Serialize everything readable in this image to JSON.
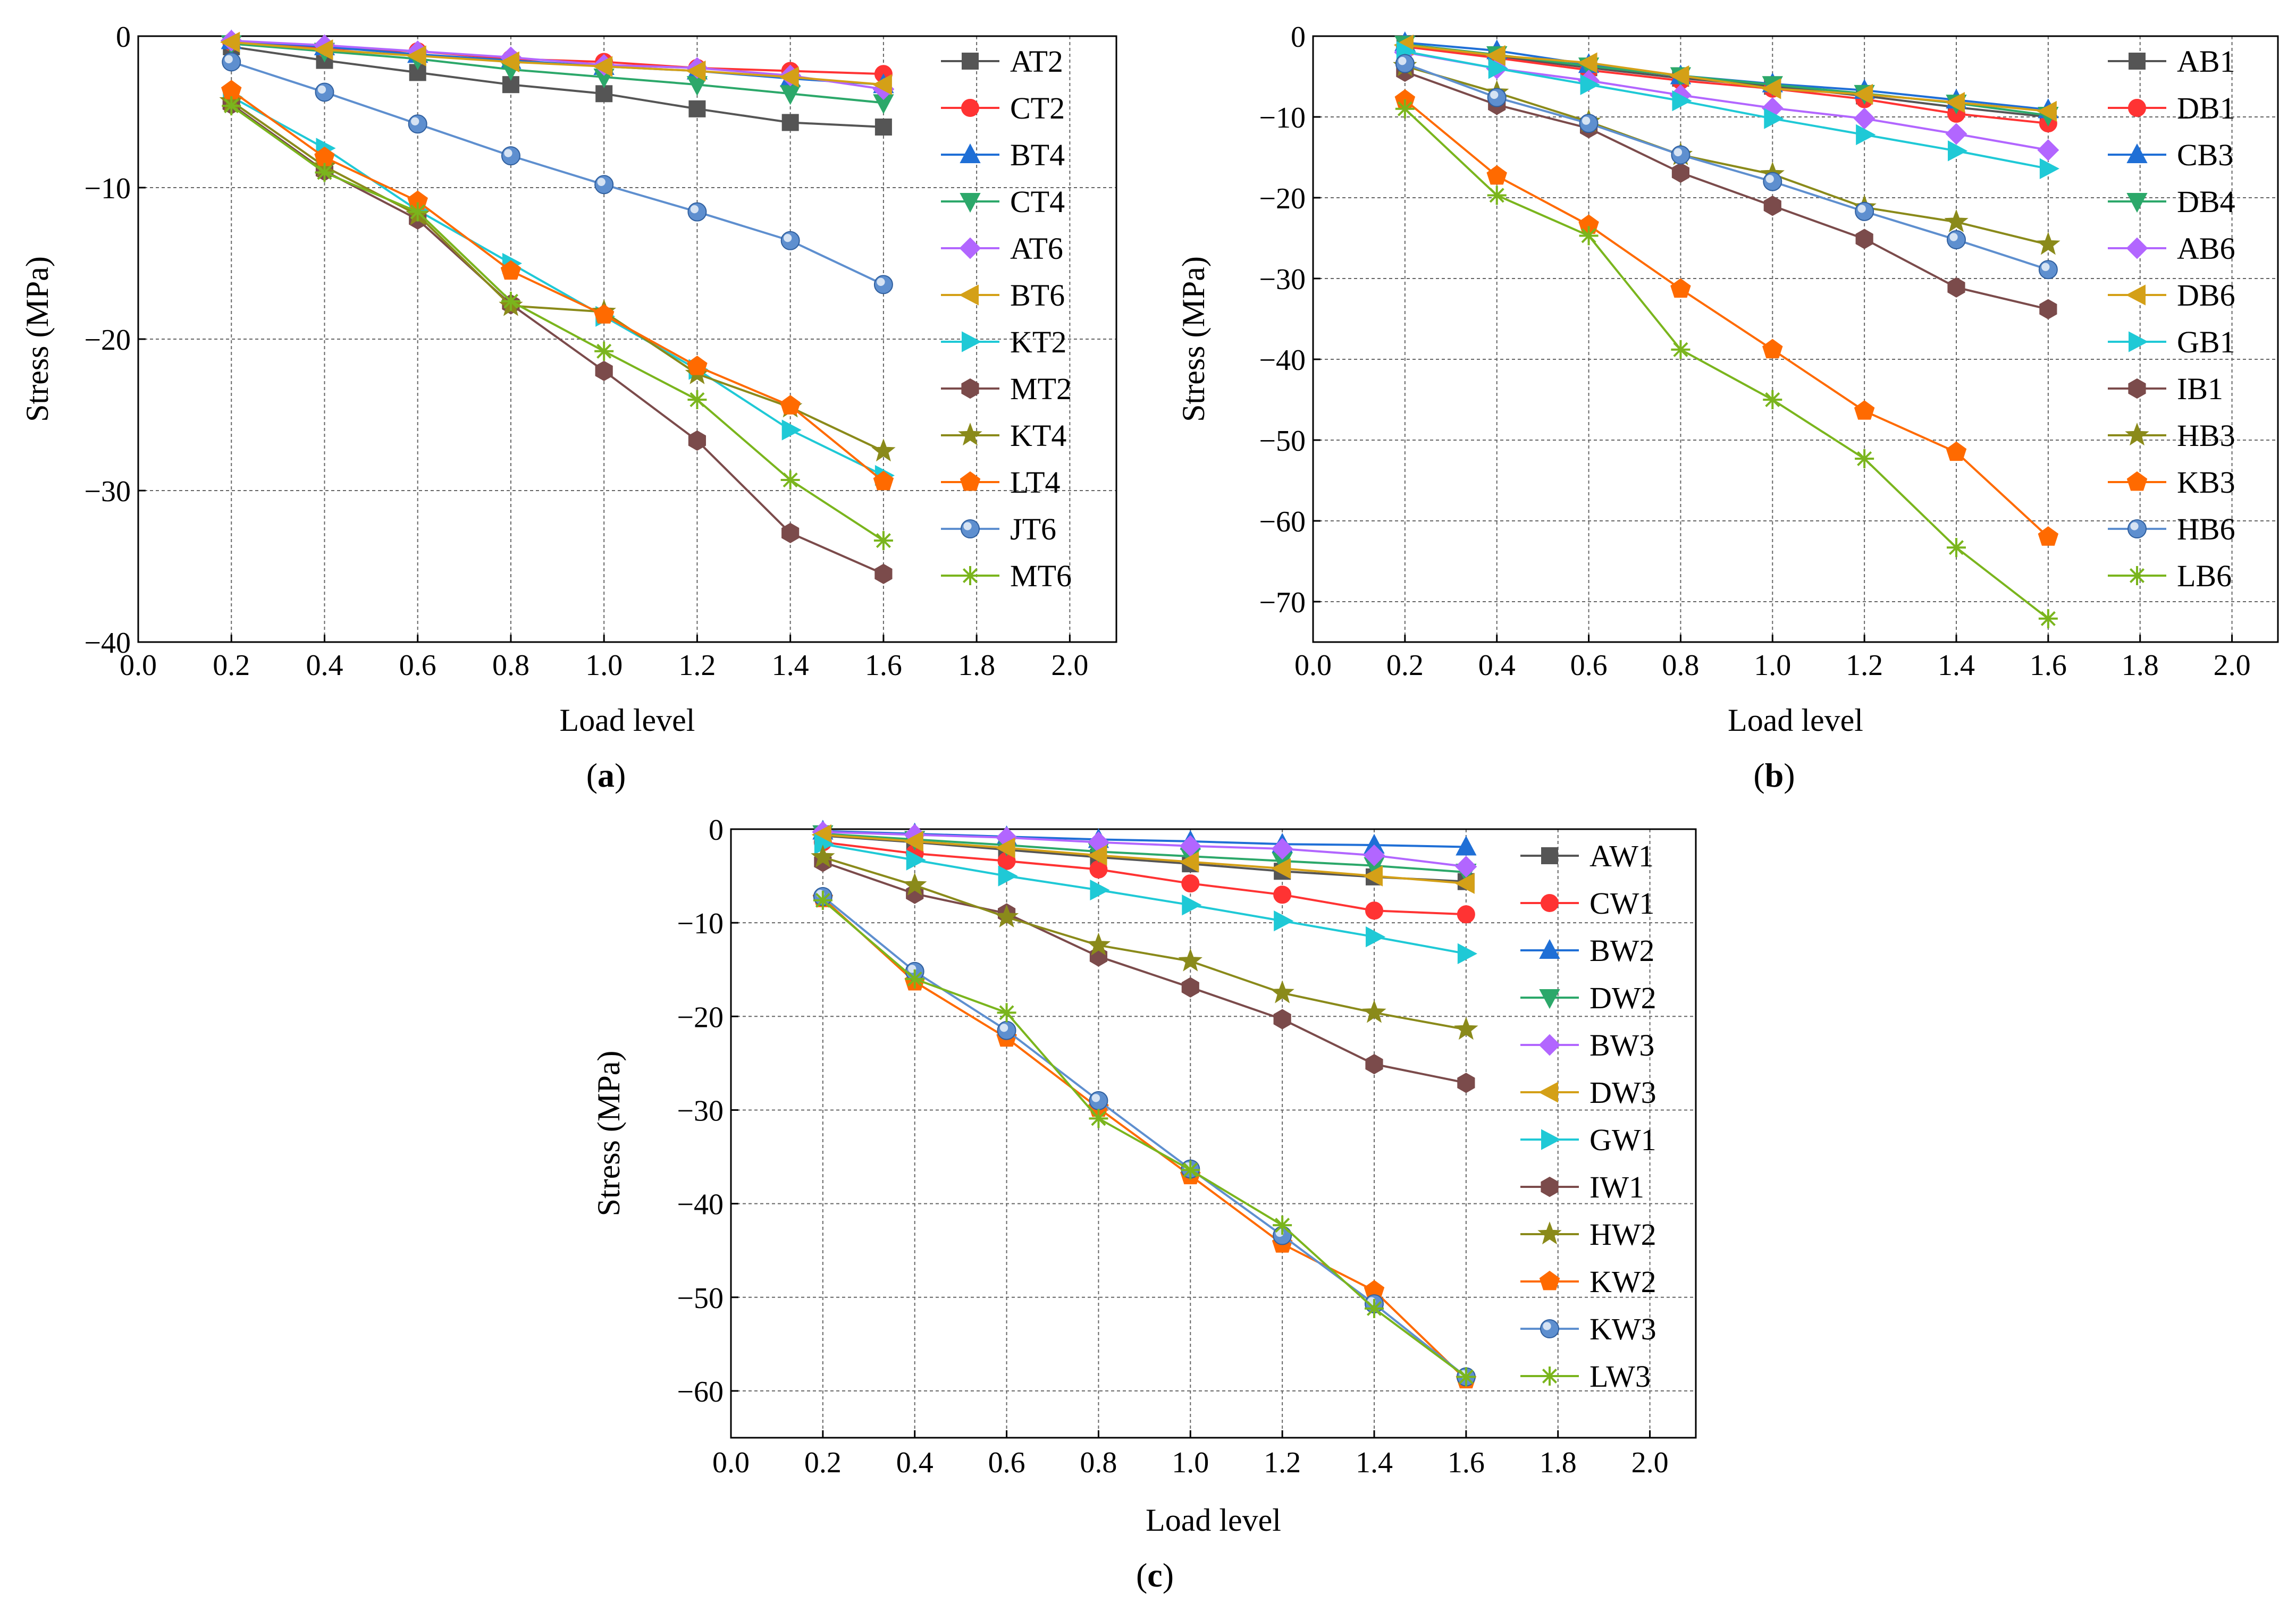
{
  "chart_data": [
    {
      "id": "a",
      "type": "line",
      "caption_letter": "a",
      "xlabel": "Load level",
      "ylabel": "Stress (MPa)",
      "xlim": [
        0.0,
        2.1
      ],
      "ylim": [
        -40,
        0
      ],
      "x_ticks": [
        0.0,
        0.2,
        0.4,
        0.6,
        0.8,
        1.0,
        1.2,
        1.4,
        1.6,
        1.8,
        2.0
      ],
      "x_tick_labels": [
        "0.0",
        "0.2",
        "0.4",
        "0.6",
        "0.8",
        "1.0",
        "1.2",
        "1.4",
        "1.6",
        "1.8",
        "2.0"
      ],
      "y_ticks": [
        0,
        -10,
        -20,
        -30,
        -40
      ],
      "y_tick_labels": [
        "0",
        "−10",
        "−20",
        "−30",
        "−40"
      ],
      "grid": true,
      "legend_position": "right",
      "x": [
        0.2,
        0.4,
        0.6,
        0.8,
        1.0,
        1.2,
        1.4,
        1.6
      ],
      "series": [
        {
          "name": "AT2",
          "color": "#555555",
          "marker": "square",
          "values": [
            -0.7,
            -1.6,
            -2.4,
            -3.2,
            -3.8,
            -4.8,
            -5.7,
            -6.0
          ]
        },
        {
          "name": "CT2",
          "color": "#ff3333",
          "marker": "circle",
          "values": [
            -0.4,
            -0.8,
            -1.0,
            -1.5,
            -1.7,
            -2.1,
            -2.3,
            -2.5
          ]
        },
        {
          "name": "BT4",
          "color": "#1f6fd6",
          "marker": "triangle-up",
          "values": [
            -0.3,
            -0.7,
            -1.2,
            -1.6,
            -2.0,
            -2.3,
            -2.8,
            -3.2
          ]
        },
        {
          "name": "CT4",
          "color": "#2ca86a",
          "marker": "triangle-down",
          "values": [
            -0.5,
            -1.0,
            -1.5,
            -2.2,
            -2.7,
            -3.2,
            -3.8,
            -4.4
          ]
        },
        {
          "name": "AT6",
          "color": "#b266ff",
          "marker": "diamond",
          "values": [
            -0.3,
            -0.6,
            -1.0,
            -1.4,
            -1.9,
            -2.1,
            -2.6,
            -3.5
          ]
        },
        {
          "name": "BT6",
          "color": "#d4a017",
          "marker": "triangle-left",
          "values": [
            -0.4,
            -0.9,
            -1.3,
            -1.7,
            -2.0,
            -2.3,
            -2.7,
            -3.2
          ]
        },
        {
          "name": "KT2",
          "color": "#1fc9d6",
          "marker": "triangle-right",
          "values": [
            -4.0,
            -7.4,
            -11.5,
            -15.0,
            -18.5,
            -22.0,
            -26.0,
            -29.0
          ]
        },
        {
          "name": "MT2",
          "color": "#7b4b4b",
          "marker": "hexagon",
          "values": [
            -4.5,
            -8.9,
            -12.1,
            -17.7,
            -22.1,
            -26.7,
            -32.8,
            -35.5
          ]
        },
        {
          "name": "KT4",
          "color": "#8a8a1a",
          "marker": "star",
          "values": [
            -4.3,
            -8.6,
            -11.8,
            -17.8,
            -18.2,
            -22.3,
            -24.5,
            -27.4
          ]
        },
        {
          "name": "LT4",
          "color": "#ff6a00",
          "marker": "pentagon",
          "values": [
            -3.6,
            -8.0,
            -10.9,
            -15.5,
            -18.4,
            -21.8,
            -24.4,
            -29.4
          ]
        },
        {
          "name": "JT6",
          "color": "#5e8fcf",
          "marker": "sphere",
          "values": [
            -1.7,
            -3.7,
            -5.8,
            -7.9,
            -9.8,
            -11.6,
            -13.5,
            -16.4
          ]
        },
        {
          "name": "MT6",
          "color": "#7ab51d",
          "marker": "asterisk",
          "values": [
            -4.6,
            -9.0,
            -11.6,
            -17.5,
            -20.8,
            -24.0,
            -29.3,
            -33.3
          ]
        }
      ]
    },
    {
      "id": "b",
      "type": "line",
      "caption_letter": "b",
      "xlabel": "Load level",
      "ylabel": "Stress (MPa)",
      "xlim": [
        0.0,
        2.1
      ],
      "ylim": [
        -75,
        0
      ],
      "x_ticks": [
        0.0,
        0.2,
        0.4,
        0.6,
        0.8,
        1.0,
        1.2,
        1.4,
        1.6,
        1.8,
        2.0
      ],
      "x_tick_labels": [
        "0.0",
        "0.2",
        "0.4",
        "0.6",
        "0.8",
        "1.0",
        "1.2",
        "1.4",
        "1.6",
        "1.8",
        "2.0"
      ],
      "y_ticks": [
        0,
        -10,
        -20,
        -30,
        -40,
        -50,
        -60,
        -70
      ],
      "y_tick_labels": [
        "0",
        "−10",
        "−20",
        "−30",
        "−40",
        "−50",
        "−60",
        "−70"
      ],
      "grid": true,
      "legend_position": "right",
      "x": [
        0.2,
        0.4,
        0.6,
        0.8,
        1.0,
        1.2,
        1.4,
        1.6
      ],
      "series": [
        {
          "name": "AB1",
          "color": "#555555",
          "marker": "square",
          "values": [
            -1.2,
            -2.5,
            -3.9,
            -5.2,
            -6.2,
            -7.4,
            -8.8,
            -10.0
          ]
        },
        {
          "name": "DB1",
          "color": "#ff3333",
          "marker": "circle",
          "values": [
            -1.3,
            -2.7,
            -4.2,
            -5.5,
            -6.5,
            -7.8,
            -9.6,
            -10.8
          ]
        },
        {
          "name": "CB3",
          "color": "#1f6fd6",
          "marker": "triangle-up",
          "values": [
            -0.8,
            -1.8,
            -3.5,
            -4.9,
            -5.9,
            -6.7,
            -7.9,
            -9.1
          ]
        },
        {
          "name": "DB4",
          "color": "#2ca86a",
          "marker": "triangle-down",
          "values": [
            -1.0,
            -2.3,
            -3.7,
            -4.9,
            -6.0,
            -7.1,
            -8.3,
            -9.8
          ]
        },
        {
          "name": "AB6",
          "color": "#b266ff",
          "marker": "diamond",
          "values": [
            -2.0,
            -4.0,
            -5.5,
            -7.3,
            -8.9,
            -10.2,
            -12.1,
            -14.1
          ]
        },
        {
          "name": "DB6",
          "color": "#d4a017",
          "marker": "triangle-left",
          "values": [
            -1.1,
            -2.4,
            -3.3,
            -4.9,
            -6.5,
            -7.2,
            -8.2,
            -9.3
          ]
        },
        {
          "name": "GB1",
          "color": "#1fc9d6",
          "marker": "triangle-right",
          "values": [
            -1.9,
            -4.0,
            -6.0,
            -8.0,
            -10.2,
            -12.2,
            -14.2,
            -16.4
          ]
        },
        {
          "name": "IB1",
          "color": "#7b4b4b",
          "marker": "hexagon",
          "values": [
            -4.4,
            -8.5,
            -11.4,
            -16.9,
            -21.0,
            -25.1,
            -31.1,
            -33.8
          ]
        },
        {
          "name": "HB3",
          "color": "#8a8a1a",
          "marker": "star",
          "values": [
            -3.7,
            -7.0,
            -10.6,
            -14.7,
            -17.1,
            -21.2,
            -23.0,
            -25.8
          ]
        },
        {
          "name": "KB3",
          "color": "#ff6a00",
          "marker": "pentagon",
          "values": [
            -7.9,
            -17.3,
            -23.4,
            -31.3,
            -38.8,
            -46.4,
            -51.5,
            -62.0
          ]
        },
        {
          "name": "HB6",
          "color": "#5e8fcf",
          "marker": "sphere",
          "values": [
            -3.4,
            -7.6,
            -10.8,
            -14.7,
            -18.0,
            -21.7,
            -25.2,
            -28.9
          ]
        },
        {
          "name": "LB6",
          "color": "#7ab51d",
          "marker": "asterisk",
          "values": [
            -9.0,
            -19.7,
            -24.7,
            -38.8,
            -45.0,
            -52.3,
            -63.3,
            -72.1
          ]
        }
      ]
    },
    {
      "id": "c",
      "type": "line",
      "caption_letter": "c",
      "xlabel": "Load level",
      "ylabel": "Stress (MPa)",
      "xlim": [
        0.0,
        2.1
      ],
      "ylim": [
        -65,
        0
      ],
      "x_ticks": [
        0.0,
        0.2,
        0.4,
        0.6,
        0.8,
        1.0,
        1.2,
        1.4,
        1.6,
        1.8,
        2.0
      ],
      "x_tick_labels": [
        "0.0",
        "0.2",
        "0.4",
        "0.6",
        "0.8",
        "1.0",
        "1.2",
        "1.4",
        "1.6",
        "1.8",
        "2.0"
      ],
      "y_ticks": [
        0,
        -10,
        -20,
        -30,
        -40,
        -50,
        -60
      ],
      "y_tick_labels": [
        "0",
        "−10",
        "−20",
        "−30",
        "−40",
        "−50",
        "−60"
      ],
      "grid": true,
      "legend_position": "right",
      "x": [
        0.2,
        0.4,
        0.6,
        0.8,
        1.0,
        1.2,
        1.4,
        1.6
      ],
      "series": [
        {
          "name": "AW1",
          "color": "#555555",
          "marker": "square",
          "values": [
            -0.7,
            -1.4,
            -2.2,
            -3.0,
            -3.7,
            -4.5,
            -5.1,
            -5.6
          ]
        },
        {
          "name": "CW1",
          "color": "#ff3333",
          "marker": "circle",
          "values": [
            -1.4,
            -2.6,
            -3.4,
            -4.3,
            -5.8,
            -7.0,
            -8.7,
            -9.1
          ]
        },
        {
          "name": "BW2",
          "color": "#1f6fd6",
          "marker": "triangle-up",
          "values": [
            -0.2,
            -0.5,
            -0.8,
            -1.1,
            -1.3,
            -1.6,
            -1.7,
            -1.9
          ]
        },
        {
          "name": "DW2",
          "color": "#2ca86a",
          "marker": "triangle-down",
          "values": [
            -0.5,
            -1.1,
            -1.7,
            -2.4,
            -2.9,
            -3.4,
            -3.9,
            -4.6
          ]
        },
        {
          "name": "BW3",
          "color": "#b266ff",
          "marker": "diamond",
          "values": [
            -0.3,
            -0.6,
            -0.9,
            -1.4,
            -1.8,
            -2.1,
            -2.8,
            -4.0
          ]
        },
        {
          "name": "DW3",
          "color": "#d4a017",
          "marker": "triangle-left",
          "values": [
            -0.6,
            -1.3,
            -2.0,
            -2.8,
            -3.5,
            -4.2,
            -5.0,
            -5.8
          ]
        },
        {
          "name": "GW1",
          "color": "#1fc9d6",
          "marker": "triangle-right",
          "values": [
            -1.6,
            -3.3,
            -5.0,
            -6.5,
            -8.1,
            -9.8,
            -11.5,
            -13.3
          ]
        },
        {
          "name": "IW1",
          "color": "#7b4b4b",
          "marker": "hexagon",
          "values": [
            -3.5,
            -6.9,
            -9.0,
            -13.6,
            -16.9,
            -20.3,
            -25.1,
            -27.1
          ]
        },
        {
          "name": "HW2",
          "color": "#8a8a1a",
          "marker": "star",
          "values": [
            -3.0,
            -6.0,
            -9.4,
            -12.4,
            -14.1,
            -17.5,
            -19.6,
            -21.4
          ]
        },
        {
          "name": "KW2",
          "color": "#ff6a00",
          "marker": "pentagon",
          "values": [
            -7.4,
            -16.3,
            -22.3,
            -29.8,
            -37.0,
            -44.3,
            -49.3,
            -58.8
          ]
        },
        {
          "name": "KW3",
          "color": "#5e8fcf",
          "marker": "sphere",
          "values": [
            -7.2,
            -15.2,
            -21.5,
            -29.0,
            -36.3,
            -43.4,
            -50.7,
            -58.5
          ]
        },
        {
          "name": "LW3",
          "color": "#7ab51d",
          "marker": "asterisk",
          "values": [
            -7.6,
            -16.0,
            -19.6,
            -30.9,
            -36.4,
            -42.3,
            -51.2,
            -58.5
          ]
        }
      ]
    }
  ]
}
